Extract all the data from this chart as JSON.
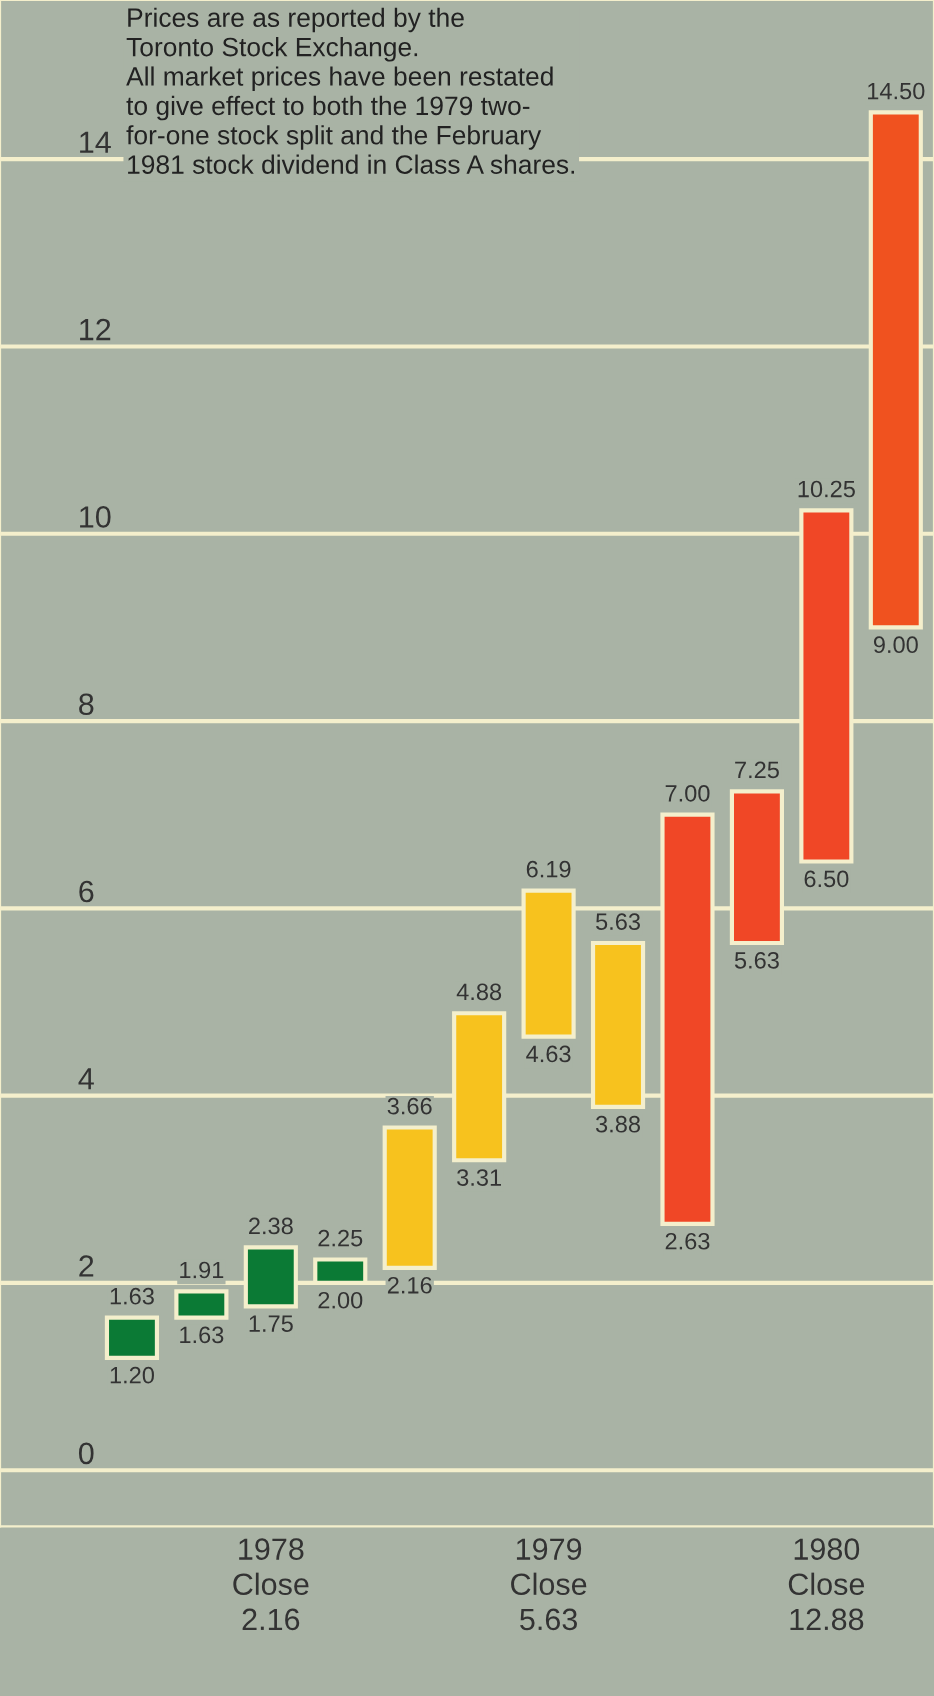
{
  "chart_data": {
    "type": "bar",
    "categories": [
      null,
      null,
      "1978\nClose\n2.16",
      null,
      null,
      null,
      "1979\nClose\n5.63",
      null,
      null,
      null,
      "1980\nClose\n12.88",
      null
    ],
    "base": [
      1.2,
      1.63,
      1.75,
      2.0,
      2.16,
      3.31,
      4.63,
      3.88,
      2.63,
      5.63,
      6.5,
      9.0
    ],
    "values": [
      0.43,
      0.28,
      0.63,
      0.25,
      1.5,
      1.57,
      1.56,
      1.75,
      4.37,
      1.62,
      3.75,
      5.5
    ],
    "colors": [
      "#0b7a35",
      "#0b7a35",
      "#0b7a35",
      "#0b7a35",
      "#f7c21e",
      "#f7c21e",
      "#f7c21e",
      "#f7c21e",
      "#f04726",
      "#f04726",
      "#f04726",
      "#f0521f"
    ],
    "ylim": [
      -0.6,
      15.7
    ],
    "yticks": [
      0,
      2,
      4,
      6,
      8,
      10,
      12,
      14
    ],
    "grid": "y",
    "annotations": [
      "Prices are as reported by the\nToronto Stock Exchange.\nAll market prices have been restated\nto give effect to both the 1979 two-\nfor-one stock split and the February\n1981 stock dividend in Class A shares.",
      {
        "text": "1.63",
        "y": 1.63
      },
      {
        "text": "1.20",
        "y": 1.2
      },
      {
        "text": "1.91",
        "y": 1.91
      },
      {
        "text": "1.63",
        "y": 1.63
      },
      {
        "text": "2.38",
        "y": 2.38
      },
      {
        "text": "1.75",
        "y": 1.75
      },
      {
        "text": "2.25",
        "y": 2.25
      },
      {
        "text": "2.00",
        "y": 2.0
      },
      {
        "text": "3.66",
        "y": 3.66
      },
      {
        "text": "2.16",
        "y": 2.16
      },
      {
        "text": "4.88",
        "y": 4.88
      },
      {
        "text": "3.31",
        "y": 3.31
      },
      {
        "text": "6.19",
        "y": 6.19
      },
      {
        "text": "4.63",
        "y": 4.63
      },
      {
        "text": "5.63",
        "y": 5.63
      },
      {
        "text": "3.88",
        "y": 3.88
      },
      {
        "text": "7.00",
        "y": 7.0
      },
      {
        "text": "2.63",
        "y": 2.63
      },
      {
        "text": "7.25",
        "y": 7.25
      },
      {
        "text": "5.63",
        "y": 5.63
      },
      {
        "text": "10.25",
        "y": 10.25
      },
      {
        "text": "6.50",
        "y": 6.5
      },
      {
        "text": "14.50",
        "y": 14.5
      },
      {
        "text": "9.00",
        "y": 9.0
      }
    ]
  }
}
